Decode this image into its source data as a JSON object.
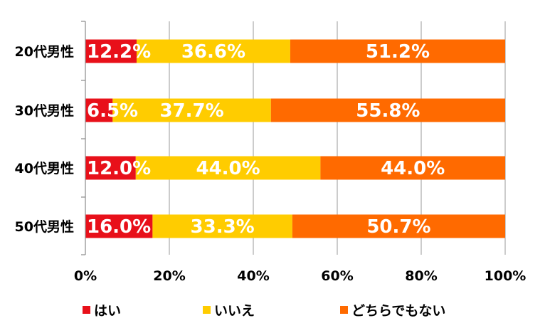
{
  "chart_data": {
    "type": "bar",
    "orientation": "horizontal",
    "stacked": true,
    "percent_stacked": true,
    "categories": [
      "20代男性",
      "30代男性",
      "40代男性",
      "50代男性"
    ],
    "series": [
      {
        "name": "はい",
        "values": [
          12.2,
          6.5,
          12.0,
          16.0
        ],
        "labels": [
          "12.2%",
          "6.5%",
          "12.0%",
          "16.0%"
        ],
        "color": "#e8101a"
      },
      {
        "name": "いいえ",
        "values": [
          36.6,
          37.7,
          44.0,
          33.3
        ],
        "labels": [
          "36.6%",
          "37.7%",
          "44.0%",
          "33.3%"
        ],
        "color": "#ffcc00"
      },
      {
        "name": "どちらでもない",
        "values": [
          51.2,
          55.8,
          44.0,
          50.7
        ],
        "labels": [
          "51.2%",
          "55.8%",
          "44.0%",
          "50.7%"
        ],
        "color": "#ff6a00"
      }
    ],
    "xlim": [
      0,
      100
    ],
    "xticks": [
      "0%",
      "20%",
      "40%",
      "60%",
      "80%",
      "100%"
    ],
    "grid": true,
    "legend_position": "bottom"
  }
}
